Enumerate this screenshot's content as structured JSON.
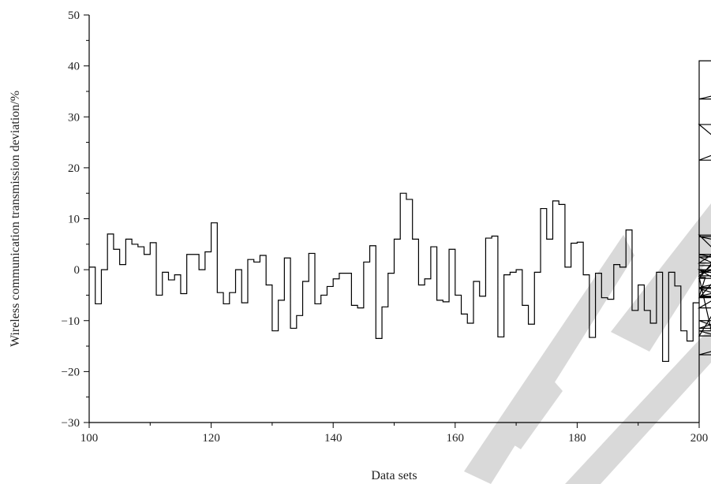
{
  "chart_data": {
    "type": "line",
    "style": "step",
    "xlabel": "Data sets",
    "ylabel": "Wireless communication transmission deviation/%",
    "xlim": [
      100,
      200
    ],
    "ylim": [
      -30,
      50
    ],
    "x_ticks": [
      100,
      120,
      140,
      160,
      180,
      200
    ],
    "y_ticks": [
      -30,
      -20,
      -10,
      0,
      10,
      20,
      30,
      40,
      50
    ],
    "x_tick_labels": [
      "100",
      "120",
      "140",
      "160",
      "180",
      "200"
    ],
    "y_tick_labels": [
      "−30",
      "−20",
      "−10",
      "0",
      "10",
      "20",
      "30",
      "40",
      "50"
    ],
    "grid": false,
    "line_color": "#000000",
    "x_start": 100,
    "x_step": 1,
    "values": [
      0.5,
      -6.7,
      0,
      7,
      4,
      1,
      6,
      5,
      4.5,
      3,
      5.3,
      -5,
      -0.5,
      -2,
      -1,
      -4.7,
      3,
      3,
      0,
      3.5,
      9.2,
      -4.5,
      -6.7,
      -4.5,
      0,
      -6.5,
      2,
      1.5,
      2.8,
      -3,
      -12,
      -6,
      2.3,
      -11.5,
      -9,
      -2.3,
      3.2,
      -6.7,
      -5,
      -3.3,
      -1.8,
      -0.7,
      -0.7,
      -7,
      -7.5,
      1.5,
      4.7,
      -13.5,
      -7.3,
      -0.7,
      6,
      15,
      13.8,
      6,
      -3,
      -1.8,
      4.5,
      -6,
      -6.3,
      4,
      -5,
      -8.7,
      -10.5,
      -2.3,
      -5.2,
      6.2,
      6.6,
      -13.2,
      -1,
      -0.5,
      0,
      -7,
      -10.7,
      -0.5,
      12,
      6,
      13.5,
      12.8,
      0.5,
      5.2,
      5.4,
      -1,
      -13.3,
      -0.7,
      -5.5,
      -5.8,
      1,
      0.5,
      7.8,
      -8,
      -3,
      -8,
      -10.5,
      -0.5,
      -18,
      -0.5,
      -3.2,
      -12,
      -14,
      -6.5,
      -5.3,
      -1.5,
      -12,
      -13,
      -5.3,
      -5.5,
      2.5,
      -1.2,
      6.8,
      -3.7,
      -7.5,
      0,
      -3.5,
      0,
      -10,
      -16.7,
      -11.5,
      -5.2,
      -0.5,
      3,
      -1.7,
      28.5,
      6.5,
      0.8,
      1.3,
      21.5,
      33.5,
      41
    ]
  },
  "watermark": {
    "color": "#d9d9d9"
  }
}
